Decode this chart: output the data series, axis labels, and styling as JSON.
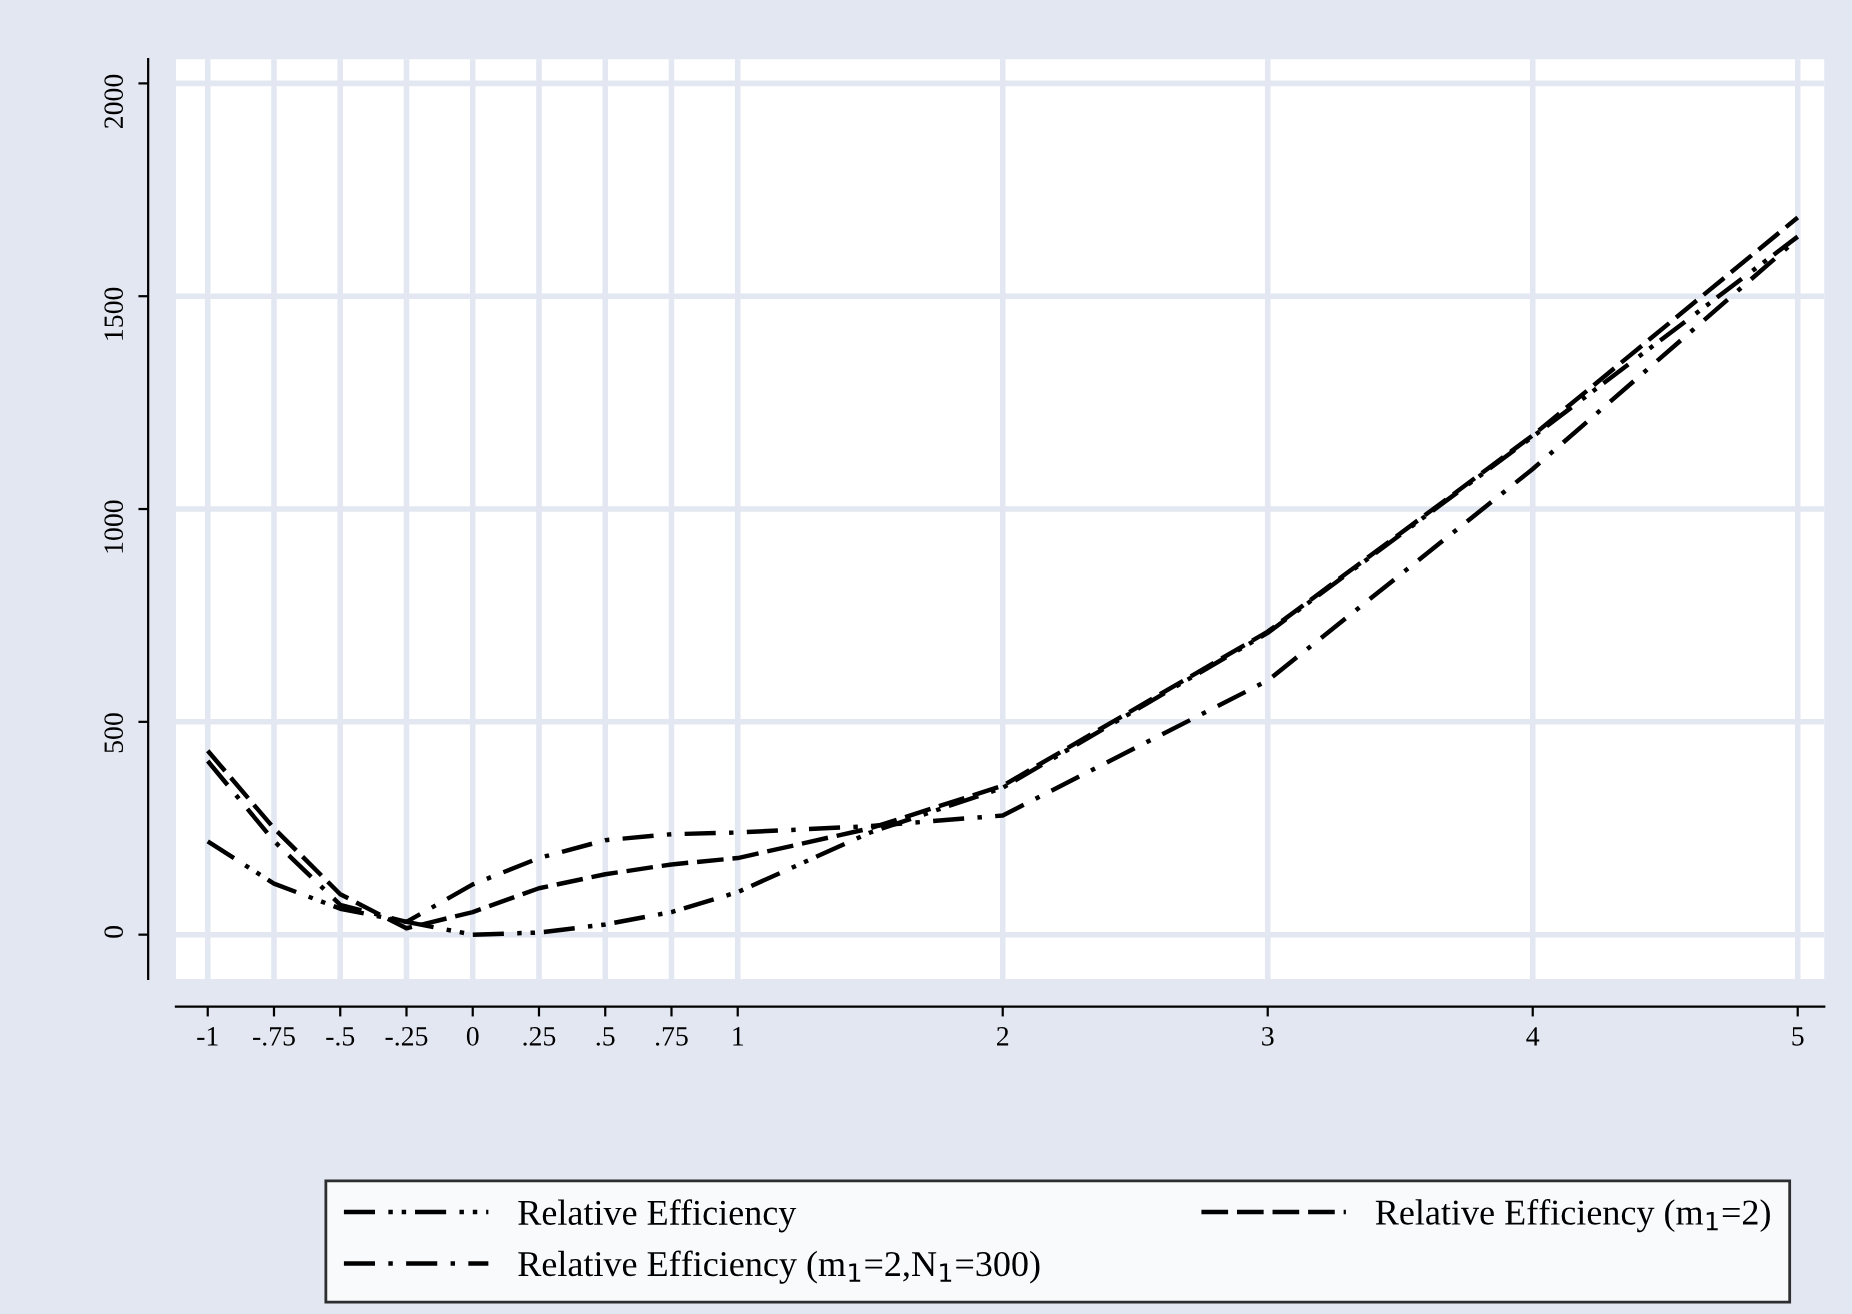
{
  "chart_data": {
    "type": "line",
    "x": [
      -1,
      -0.75,
      -0.5,
      -0.25,
      0,
      0.25,
      0.5,
      0.75,
      1,
      1.5,
      2,
      3,
      4,
      5
    ],
    "series": [
      {
        "name": "Relative Efficiency",
        "color": "#000000",
        "line_style": "dashdotdot",
        "values": [
          219,
          120,
          61,
          30,
          0,
          5,
          24,
          53,
          100,
          240,
          345,
          709,
          1170,
          1640
        ]
      },
      {
        "name": "Relative Efficiency (m$_{1}$=2)",
        "color": "#000000",
        "line_style": "dashed",
        "values": [
          432,
          250,
          95,
          15,
          53,
          109,
          142,
          165,
          180,
          250,
          350,
          712,
          1173,
          1685
        ]
      },
      {
        "name": "Relative Efficiency (m$_{1}$=2,N$_{1}$=300)",
        "color": "#000000",
        "line_style": "dashdot",
        "values": [
          408,
          220,
          70,
          30,
          118,
          180,
          222,
          236,
          240,
          255,
          280,
          597,
          1094,
          1635
        ]
      }
    ],
    "xlim": [
      -1.12,
      5.1
    ],
    "ylim": [
      -104,
      2057
    ],
    "xticks": [
      {
        "value": -1,
        "label": "-1"
      },
      {
        "value": -0.75,
        "label": "-.75"
      },
      {
        "value": -0.5,
        "label": "-.5"
      },
      {
        "value": -0.25,
        "label": "-.25"
      },
      0,
      {
        "value": 0.25,
        "label": ".25"
      },
      {
        "value": 0.5,
        "label": ".5"
      },
      {
        "value": 0.75,
        "label": ".75"
      },
      1,
      2,
      3,
      4,
      5
    ],
    "yticks": [
      0,
      500,
      1000,
      1500,
      2000
    ],
    "grid": true,
    "legend": "bottom",
    "marker": "none"
  }
}
